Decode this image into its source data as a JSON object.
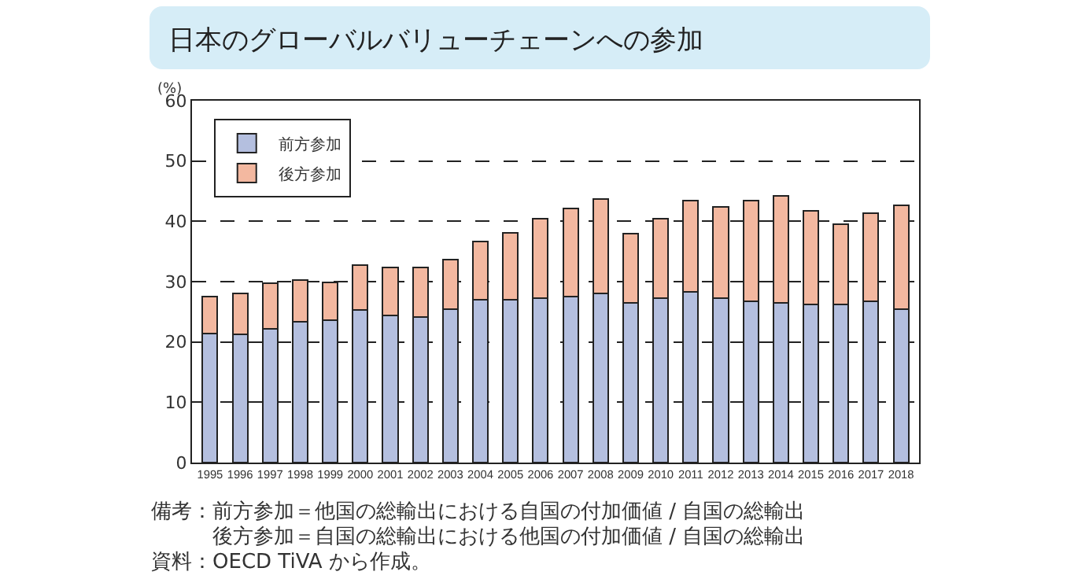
{
  "chart_data": {
    "type": "bar",
    "title": "日本のグローバルバリューチェーンへの参加",
    "ylabel": "(%)",
    "categories": [
      "1995",
      "1996",
      "1997",
      "1998",
      "1999",
      "2000",
      "2001",
      "2002",
      "2003",
      "2004",
      "2005",
      "2006",
      "2007",
      "2008",
      "2009",
      "2010",
      "2011",
      "2012",
      "2013",
      "2014",
      "2015",
      "2016",
      "2017",
      "2018"
    ],
    "series": [
      {
        "name": "前方参加",
        "color": "#b4bfdf",
        "values": [
          21.4,
          21.2,
          22.2,
          23.3,
          23.6,
          25.3,
          24.4,
          24.1,
          25.4,
          27.0,
          27.0,
          27.3,
          27.5,
          28.1,
          26.5,
          27.3,
          28.3,
          27.3,
          26.7,
          26.5,
          26.2,
          26.2,
          26.7,
          25.4
        ]
      },
      {
        "name": "後方参加",
        "color": "#f3b8a0",
        "values": [
          6.1,
          6.9,
          7.5,
          6.9,
          6.3,
          7.5,
          7.9,
          8.2,
          8.2,
          9.6,
          11.1,
          13.2,
          14.6,
          15.6,
          11.4,
          13.2,
          15.2,
          15.1,
          16.7,
          17.7,
          15.6,
          13.3,
          14.6,
          17.2
        ]
      }
    ],
    "stacked": true,
    "ylim": [
      0,
      60
    ],
    "yticks": [
      0,
      10,
      20,
      30,
      40,
      50,
      60
    ],
    "grid": "y",
    "line_style": "dashed",
    "legend": "top left",
    "annotations": [
      "備考：前方参加＝他国の総輸出における自国の付加価値 / 自国の総輸出",
      "　　　後方参加＝自国の総輸出における他国の付加価値 / 自国の総輸出",
      "資料：OECD TiVA から作成。"
    ]
  }
}
